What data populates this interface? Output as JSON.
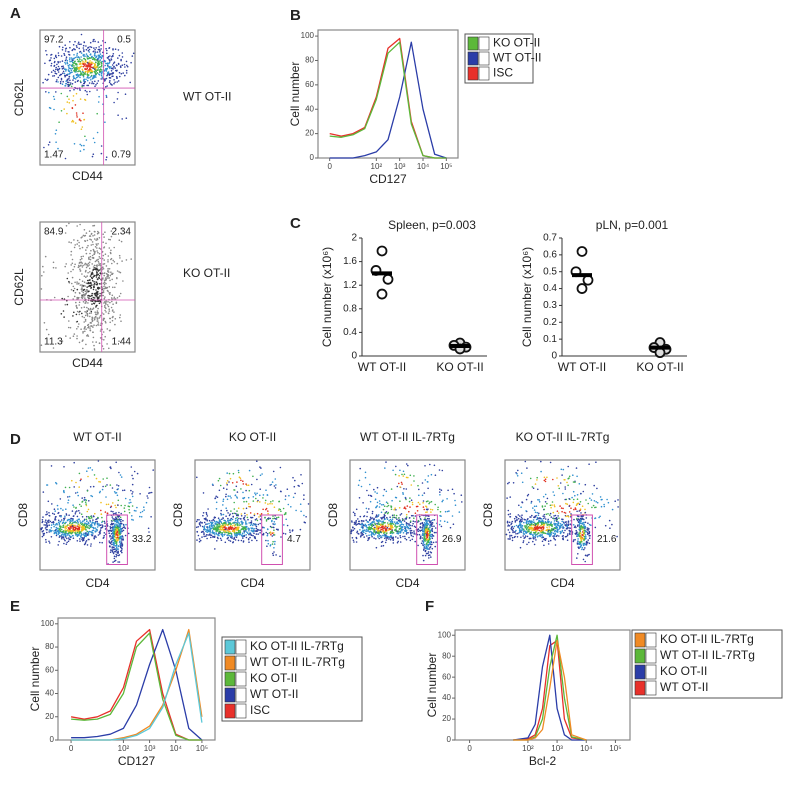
{
  "figure": {
    "A": {
      "label": "A",
      "plots": [
        {
          "y_label": "CD62L",
          "x_label": "CD44",
          "name": "WT OT-II",
          "quadrants": [
            97.2,
            0.5,
            1.47,
            0.79
          ]
        },
        {
          "y_label": "CD62L",
          "x_label": "CD44",
          "name": "KO OT-II",
          "quadrants": [
            84.9,
            2.34,
            11.3,
            1.44
          ]
        }
      ]
    },
    "B": {
      "label": "B",
      "y_label": "Cell number",
      "x_label": "CD127",
      "xlim": [
        -0.5,
        5.5
      ],
      "ylim": [
        0,
        105
      ],
      "xticks": [
        {
          "value": 0,
          "label": "0"
        },
        {
          "value": 2,
          "label": "10²"
        },
        {
          "value": 3,
          "label": "10³"
        },
        {
          "value": 4,
          "label": "10⁴"
        },
        {
          "value": 5,
          "label": "10⁵"
        }
      ],
      "yticks": [
        0,
        20,
        40,
        60,
        80,
        100
      ],
      "x": [
        0,
        0.5,
        1,
        1.5,
        2,
        2.5,
        3,
        3.5,
        4,
        4.5,
        5
      ],
      "series": [
        {
          "name": "KO OT-II",
          "color": "#5cb83a",
          "values": [
            18,
            17,
            19,
            24,
            48,
            86,
            95,
            28,
            2,
            0,
            0
          ]
        },
        {
          "name": "WT OT-II",
          "color": "#2b3da8",
          "values": [
            0,
            0,
            0,
            2,
            5,
            15,
            50,
            95,
            40,
            3,
            0
          ]
        },
        {
          "name": "ISC",
          "color": "#e8302a",
          "values": [
            20,
            18,
            20,
            25,
            50,
            90,
            98,
            30,
            2,
            0,
            0
          ]
        }
      ]
    },
    "C": {
      "label": "C",
      "charts": [
        {
          "title": "Spleen, p=0.003",
          "y_label": "Cell number (x10⁶)",
          "ylim": [
            0,
            2
          ],
          "yticks": [
            0,
            0.4,
            0.8,
            1.2,
            1.6,
            2
          ],
          "categories": [
            "WT OT-II",
            "KO OT-II"
          ],
          "groups": [
            {
              "values": [
                1.78,
                1.45,
                1.3,
                1.05
              ],
              "mean": 1.4
            },
            {
              "values": [
                0.22,
                0.18,
                0.15,
                0.12
              ],
              "mean": 0.17
            }
          ]
        },
        {
          "title": "pLN, p=0.001",
          "y_label": "Cell number (x10⁶)",
          "ylim": [
            0,
            0.7
          ],
          "yticks": [
            0,
            0.1,
            0.2,
            0.3,
            0.4,
            0.5,
            0.6,
            0.7
          ],
          "categories": [
            "WT OT-II",
            "KO OT-II"
          ],
          "groups": [
            {
              "values": [
                0.62,
                0.5,
                0.45,
                0.4
              ],
              "mean": 0.48
            },
            {
              "values": [
                0.08,
                0.05,
                0.04,
                0.02
              ],
              "mean": 0.05
            }
          ]
        }
      ]
    },
    "D": {
      "label": "D",
      "plots": [
        {
          "title": "WT OT-II",
          "y_label": "CD8",
          "x_label": "CD4",
          "gate": 33.2
        },
        {
          "title": "KO OT-II",
          "y_label": "CD8",
          "x_label": "CD4",
          "gate": 4.7
        },
        {
          "title": "WT OT-II IL-7RTg",
          "y_label": "CD8",
          "x_label": "CD4",
          "gate": 26.9
        },
        {
          "title": "KO OT-II IL-7RTg",
          "y_label": "CD8",
          "x_label": "CD4",
          "gate": 21.6
        }
      ]
    },
    "E": {
      "label": "E",
      "y_label": "Cell number",
      "x_label": "CD127",
      "xlim": [
        -0.5,
        5.5
      ],
      "ylim": [
        0,
        105
      ],
      "xticks": [
        {
          "value": 0,
          "label": "0"
        },
        {
          "value": 2,
          "label": "10²"
        },
        {
          "value": 3,
          "label": "10³"
        },
        {
          "value": 4,
          "label": "10⁴"
        },
        {
          "value": 5,
          "label": "10⁵"
        }
      ],
      "yticks": [
        0,
        20,
        40,
        60,
        80,
        100
      ],
      "x": [
        0,
        0.5,
        1,
        1.5,
        2,
        2.5,
        3,
        3.5,
        4,
        4.5,
        5
      ],
      "series": [
        {
          "name": "KO OT-II IL-7RTg",
          "color": "#5cc8d8",
          "values": [
            0,
            0,
            0,
            0,
            1,
            4,
            10,
            28,
            65,
            92,
            15
          ]
        },
        {
          "name": "WT OT-II IL-7RTg",
          "color": "#f08a24",
          "values": [
            0,
            0,
            0,
            0,
            2,
            5,
            12,
            30,
            60,
            95,
            20
          ]
        },
        {
          "name": "KO OT-II",
          "color": "#5cb83a",
          "values": [
            18,
            17,
            18,
            22,
            40,
            80,
            92,
            35,
            4,
            0,
            0
          ]
        },
        {
          "name": "WT OT-II",
          "color": "#2b3da8",
          "values": [
            2,
            2,
            3,
            5,
            10,
            30,
            65,
            95,
            60,
            10,
            0
          ]
        },
        {
          "name": "ISC",
          "color": "#e8302a",
          "values": [
            20,
            18,
            20,
            25,
            45,
            85,
            95,
            40,
            5,
            0,
            0
          ]
        }
      ]
    },
    "F": {
      "label": "F",
      "y_label": "Cell number",
      "x_label": "Bcl-2",
      "xlim": [
        -0.5,
        5.5
      ],
      "ylim": [
        0,
        105
      ],
      "xticks": [
        {
          "value": 0,
          "label": "0"
        },
        {
          "value": 2,
          "label": "10²"
        },
        {
          "value": 3,
          "label": "10³"
        },
        {
          "value": 4,
          "label": "10⁴"
        },
        {
          "value": 5,
          "label": "10⁵"
        }
      ],
      "yticks": [
        0,
        20,
        40,
        60,
        80,
        100
      ],
      "x": [
        1.5,
        2,
        2.25,
        2.5,
        2.75,
        3,
        3.25,
        3.5,
        4
      ],
      "series": [
        {
          "name": "KO OT-II IL-7RTg",
          "color": "#f08a24",
          "values": [
            0,
            0,
            2,
            10,
            50,
            95,
            60,
            5,
            0
          ]
        },
        {
          "name": "WT OT-II IL-7RTg",
          "color": "#5cb83a",
          "values": [
            0,
            0,
            3,
            20,
            70,
            100,
            40,
            3,
            0
          ]
        },
        {
          "name": "KO OT-II",
          "color": "#2b3da8",
          "values": [
            0,
            2,
            15,
            70,
            100,
            30,
            5,
            0,
            0
          ]
        },
        {
          "name": "WT OT-II",
          "color": "#e8302a",
          "values": [
            0,
            1,
            5,
            30,
            90,
            95,
            20,
            2,
            0
          ]
        }
      ]
    }
  }
}
